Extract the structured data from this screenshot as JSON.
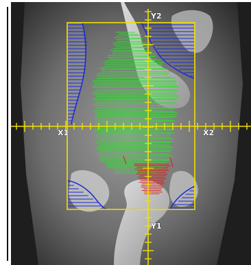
{
  "view": {
    "jaws": {
      "y2": "Y2",
      "y1": "Y1",
      "x1": "X1",
      "x2": "X2"
    }
  },
  "colors": {
    "field_edge": "#f2e000",
    "crosshair": "#f2e000",
    "mlc_leaf": "#1a2ad8",
    "structure_primary": "#22e622",
    "structure_secondary": "#e01818",
    "background_image": "#7a7a7a"
  }
}
